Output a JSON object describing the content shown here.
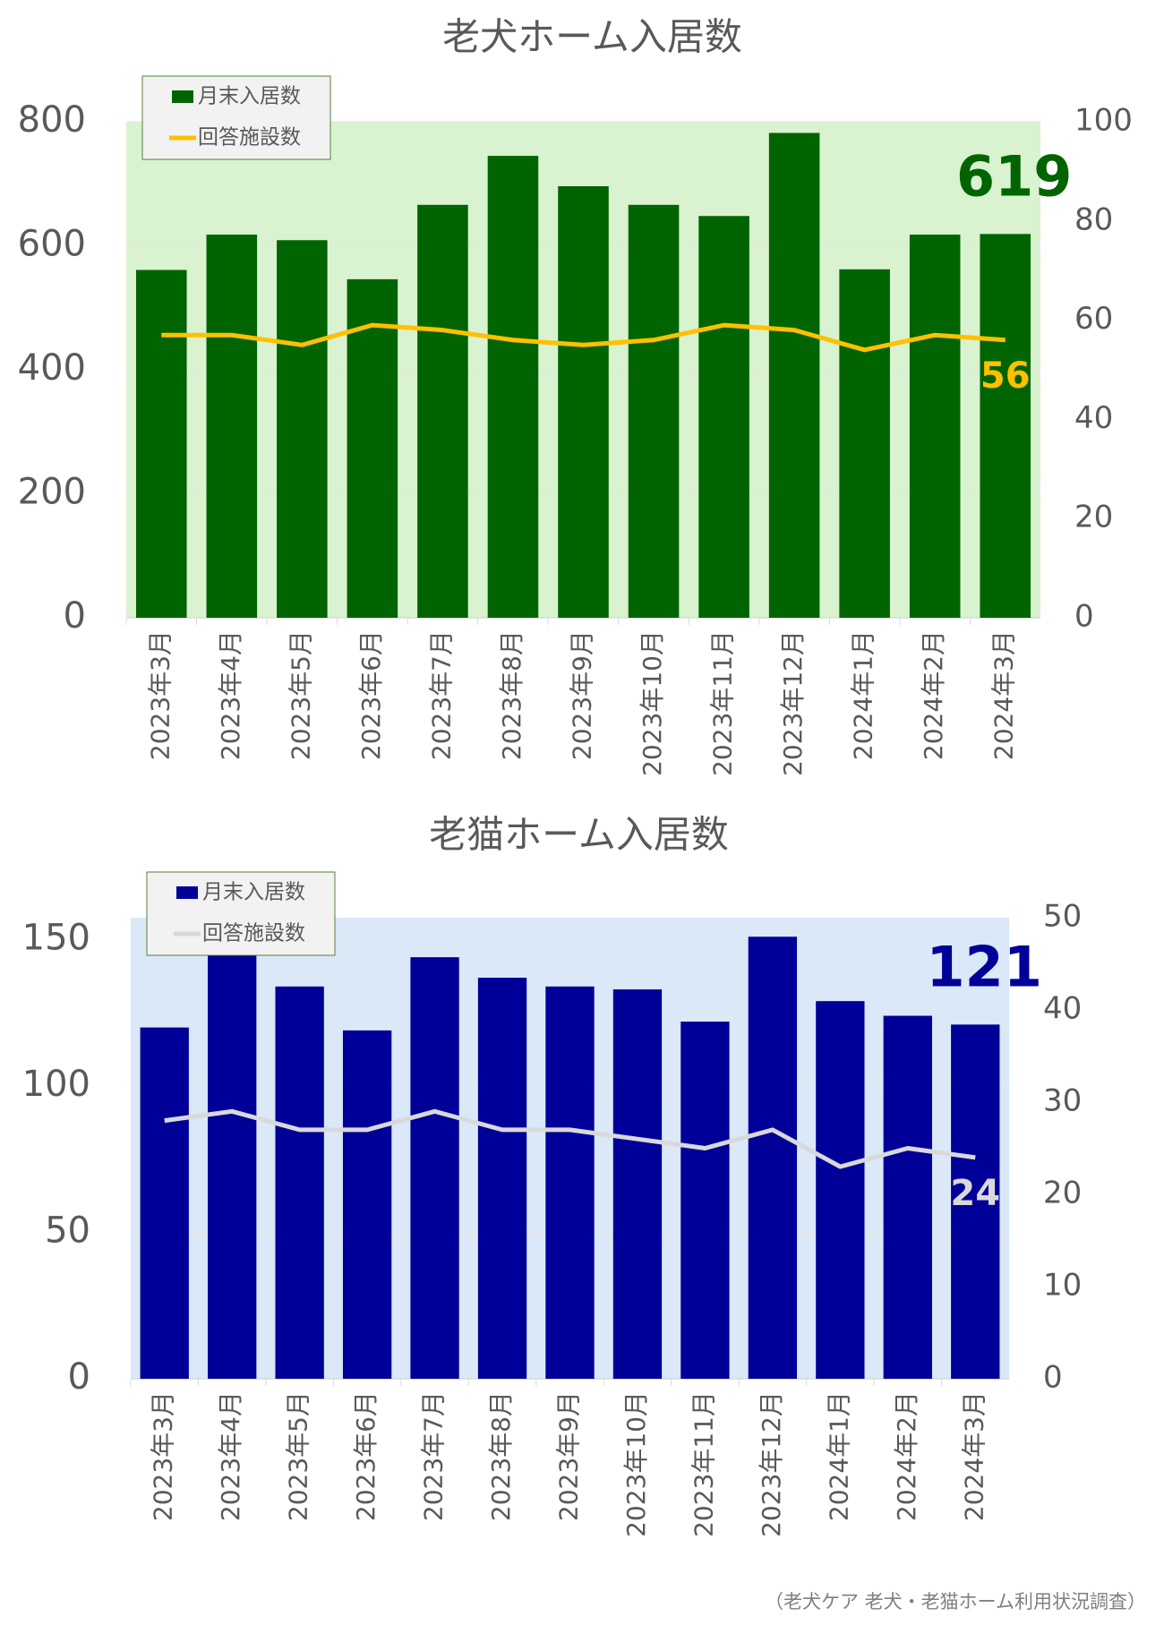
{
  "chart_data": [
    {
      "type": "bar",
      "title": "老犬ホーム入居数",
      "plot_background": "#d9f2d0",
      "categories": [
        "2023年3月",
        "2023年4月",
        "2023年5月",
        "2023年6月",
        "2023年7月",
        "2023年8月",
        "2023年9月",
        "2023年10月",
        "2023年11月",
        "2023年12月",
        "2024年1月",
        "2024年2月",
        "2024年3月"
      ],
      "series": [
        {
          "name": "月末入居数",
          "color": "#006400",
          "values": [
            561,
            618,
            609,
            546,
            666,
            745,
            696,
            666,
            648,
            782,
            562,
            618,
            619
          ]
        },
        {
          "name": "回答施設数",
          "color": "#ffc000",
          "type": "line",
          "axis": "y2",
          "values": [
            57,
            57,
            55,
            59,
            58,
            56,
            55,
            56,
            59,
            58,
            54,
            57,
            56
          ]
        }
      ],
      "ylim": [
        0,
        800
      ],
      "yticks": [
        0,
        200,
        400,
        600,
        800
      ],
      "y2lim": [
        0,
        100
      ],
      "y2ticks": [
        0,
        20,
        40,
        60,
        80,
        100
      ],
      "grid": true,
      "legend": "top-left"
    },
    {
      "type": "bar",
      "title": "老猫ホーム入居数",
      "plot_background": "#dae8f8",
      "categories": [
        "2023年3月",
        "2023年4月",
        "2023年5月",
        "2023年6月",
        "2023年7月",
        "2023年8月",
        "2023年9月",
        "2023年10月",
        "2023年11月",
        "2023年12月",
        "2024年1月",
        "2024年2月",
        "2024年3月"
      ],
      "series": [
        {
          "name": "月末入居数",
          "color": "#000099",
          "values": [
            120,
            148,
            134,
            119,
            144,
            137,
            134,
            133,
            122,
            151,
            129,
            124,
            121
          ]
        },
        {
          "name": "回答施設数",
          "color": "#d9d9d9",
          "type": "line",
          "axis": "y2",
          "values": [
            28,
            29,
            27,
            27,
            29,
            27,
            27,
            26,
            25,
            27,
            23,
            25,
            24
          ]
        }
      ],
      "ylim": [
        0,
        157.5
      ],
      "yticks": [
        0,
        50,
        100,
        150
      ],
      "y2lim": [
        0,
        50
      ],
      "y2ticks": [
        0,
        10,
        20,
        30,
        40,
        50
      ],
      "grid": true,
      "legend": "top-left"
    }
  ],
  "source": "（老犬ケア 老犬・老猫ホーム利用状況調査）"
}
